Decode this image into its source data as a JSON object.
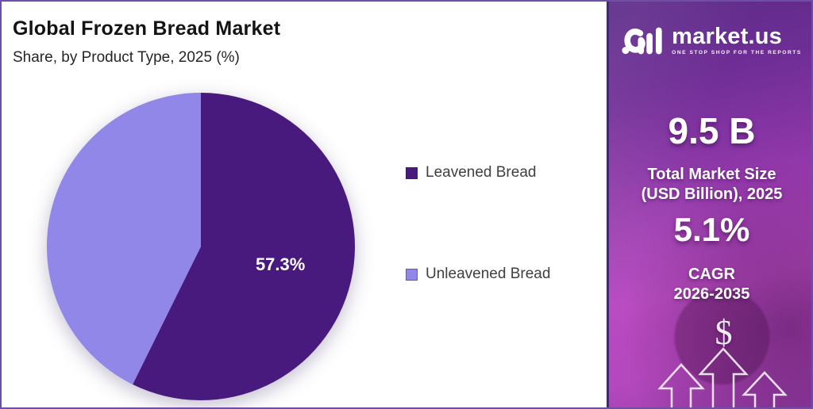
{
  "header": {
    "title": "Global Frozen Bread Market",
    "subtitle": "Share, by Product Type, 2025 (%)"
  },
  "chart_data": {
    "type": "pie",
    "title": "Global Frozen Bread Market",
    "subtitle": "Share, by Product Type, 2025 (%)",
    "unit": "%",
    "start_angle_deg": 0,
    "direction": "clockwise",
    "legend_position": "right",
    "slices": [
      {
        "label": "Leavened Bread",
        "value": 57.3,
        "color": "#481a7e",
        "data_label": "57.3%"
      },
      {
        "label": "Unleavened Bread",
        "value": 42.7,
        "color": "#9187e9",
        "data_label": ""
      }
    ]
  },
  "brand": {
    "name": "market.us",
    "tagline": "ONE STOP SHOP FOR THE REPORTS"
  },
  "stats": {
    "market_size_value": "9.5 B",
    "market_size_label_line1": "Total Market Size",
    "market_size_label_line2": "(USD Billion), 2025",
    "cagr_value": "5.1%",
    "cagr_label_line1": "CAGR",
    "cagr_label_line2": "2026-2035",
    "currency_symbol": "$"
  },
  "colors": {
    "slice_dark_purple": "#481a7e",
    "slice_light_purple": "#9187e9",
    "panel_gradient_top": "#5c2b88",
    "panel_gradient_bottom": "#b94ac1",
    "page_border": "#6f4fa5",
    "legend_text": "#3f3f3f"
  }
}
